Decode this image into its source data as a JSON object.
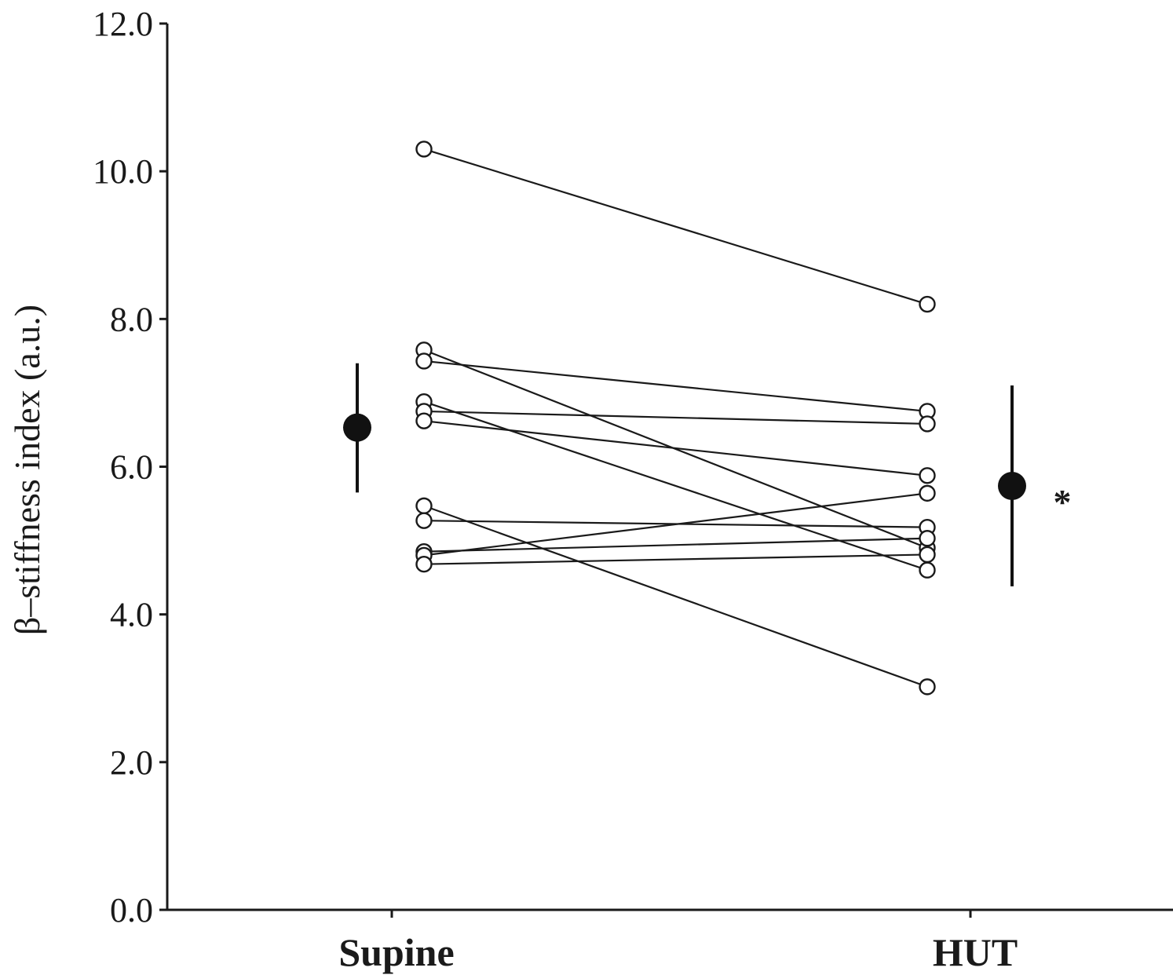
{
  "chart_data": {
    "type": "scatter",
    "title": "",
    "xlabel": "",
    "ylabel": "β–stiffness index (a.u.)",
    "categories": [
      "Supine",
      "HUT"
    ],
    "ylim": [
      0.0,
      12.0
    ],
    "yticks": [
      "0.0",
      "2.0",
      "4.0",
      "6.0",
      "8.0",
      "10.0",
      "12.0"
    ],
    "grid": false,
    "legend": "none",
    "subjects": [
      {
        "supine": 10.3,
        "hut": 8.2
      },
      {
        "supine": 7.58,
        "hut": 4.9
      },
      {
        "supine": 7.43,
        "hut": 6.75
      },
      {
        "supine": 6.88,
        "hut": 4.6
      },
      {
        "supine": 6.75,
        "hut": 6.58
      },
      {
        "supine": 6.62,
        "hut": 5.88
      },
      {
        "supine": 5.47,
        "hut": 3.02
      },
      {
        "supine": 5.27,
        "hut": 5.18
      },
      {
        "supine": 4.85,
        "hut": 5.03
      },
      {
        "supine": 4.8,
        "hut": 5.64
      },
      {
        "supine": 4.68,
        "hut": 4.81
      }
    ],
    "summary": [
      {
        "category": "Supine",
        "mean": 6.53,
        "upper": 7.4,
        "lower": 5.65
      },
      {
        "category": "HUT",
        "mean": 5.74,
        "upper": 7.1,
        "lower": 4.38
      }
    ],
    "annotations": [
      {
        "text": "*",
        "category": "HUT"
      }
    ]
  }
}
